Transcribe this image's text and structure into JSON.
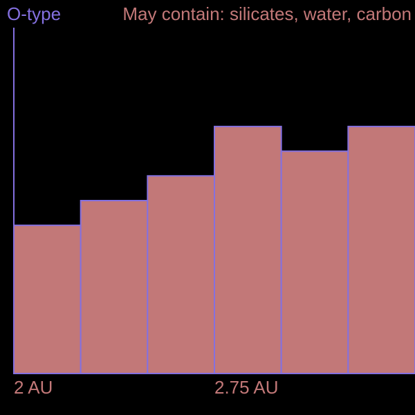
{
  "chart_data": {
    "type": "bar",
    "title": "O-type",
    "subtitle": "May contain: silicates, water, carbon",
    "x_tick_labels": [
      "2 AU",
      "2.75 AU"
    ],
    "bins": [
      {
        "x0": 2.0,
        "x1": 2.25,
        "value": 6
      },
      {
        "x0": 2.25,
        "x1": 2.5,
        "value": 7
      },
      {
        "x0": 2.5,
        "x1": 2.75,
        "value": 8
      },
      {
        "x0": 2.75,
        "x1": 3.0,
        "value": 10
      },
      {
        "x0": 3.0,
        "x1": 3.25,
        "value": 9
      },
      {
        "x0": 3.25,
        "x1": 3.5,
        "value": 10
      }
    ],
    "xlim": [
      2.0,
      3.5
    ],
    "ylim": [
      0,
      14
    ],
    "grid": false,
    "colors": {
      "background": "#000000",
      "bar_fill": "#c27878",
      "bar_stroke": "#8470e0",
      "axis": "#8470e0",
      "title": "#8470e0",
      "subtitle": "#c27878",
      "tick_label": "#c27878"
    }
  }
}
